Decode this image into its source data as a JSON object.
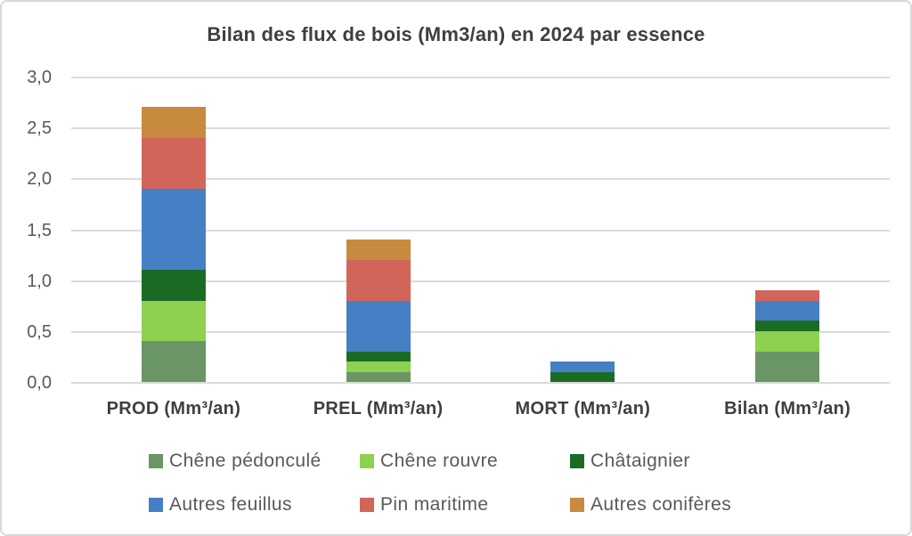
{
  "chart_data": {
    "type": "bar",
    "stacked": true,
    "title": "Bilan des flux de bois (Mm3/an) en 2024 par essence",
    "categories": [
      "PROD (Mm³/an)",
      "PREL (Mm³/an)",
      "MORT (Mm³/an)",
      "Bilan (Mm³/an)"
    ],
    "series": [
      {
        "name": "Chêne pédonculé",
        "color": "#699664",
        "values": [
          0.4,
          0.1,
          0,
          0.3
        ]
      },
      {
        "name": "Chêne rouvre",
        "color": "#8ED04F",
        "values": [
          0.4,
          0.1,
          0,
          0.2
        ]
      },
      {
        "name": "Châtaignier",
        "color": "#1C6B25",
        "values": [
          0.3,
          0.1,
          0.1,
          0.1
        ]
      },
      {
        "name": "Autres feuillus",
        "color": "#4580C4",
        "values": [
          0.8,
          0.5,
          0.1,
          0.2
        ]
      },
      {
        "name": "Pin maritime",
        "color": "#D2655A",
        "values": [
          0.5,
          0.4,
          0,
          0.1
        ]
      },
      {
        "name": "Autres conifères",
        "color": "#C88A3F",
        "values": [
          0.3,
          0.2,
          0,
          0
        ]
      }
    ],
    "totals": [
      2.7,
      1.4,
      0.2,
      0.9
    ],
    "xlabel": "",
    "ylabel": "",
    "ylim": [
      0,
      3
    ],
    "ytick_step": 0.5,
    "ytick_labels_top_to_bottom": [
      "3,0",
      "2,5",
      "2,0",
      "1,5",
      "1,0",
      "0,5",
      "0,0"
    ],
    "grid": true,
    "gridline_color": "#DBDBDB",
    "legend_position": "bottom",
    "legend_rows": 2,
    "legend_columns": 3
  }
}
